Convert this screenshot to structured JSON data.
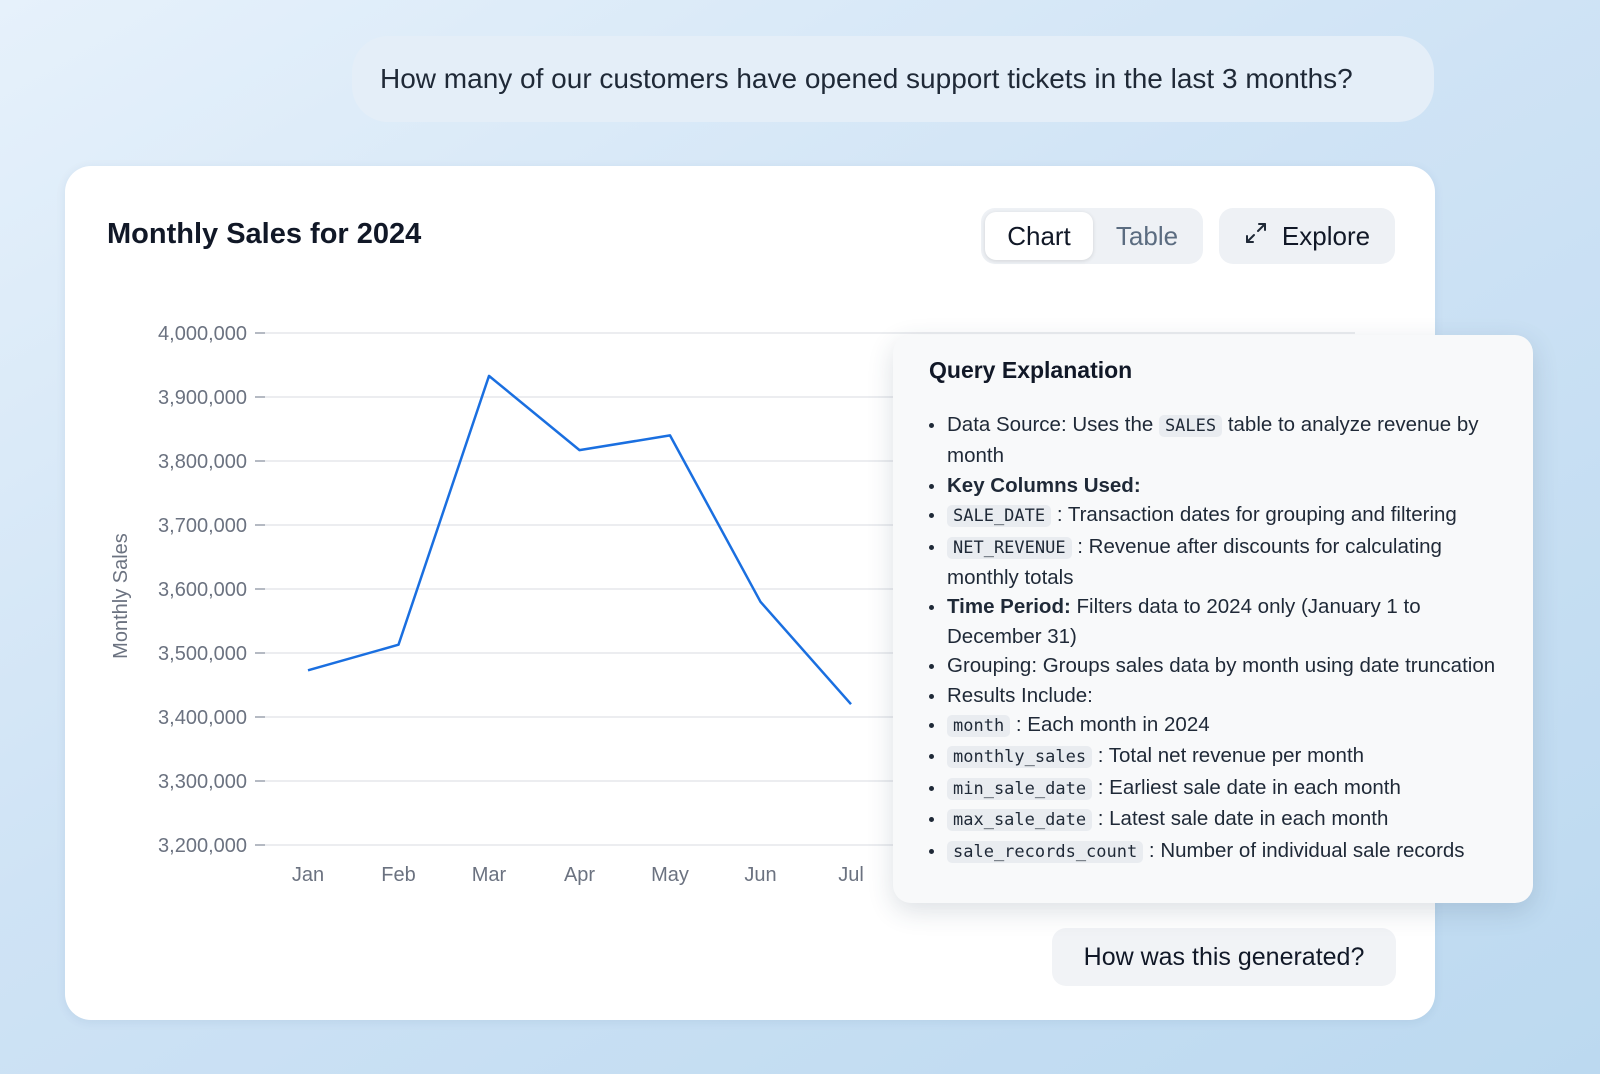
{
  "question": "How many of our customers have opened support tickets in the last 3 months?",
  "card": {
    "title": "Monthly Sales for 2024",
    "tabs": {
      "chart": "Chart",
      "table": "Table"
    },
    "explore_label": "Explore",
    "generated_label": "How was this generated?"
  },
  "chart_data": {
    "type": "line",
    "title": "Monthly Sales for 2024",
    "xlabel": "",
    "ylabel": "Monthly Sales",
    "ylim": [
      3200000,
      4000000
    ],
    "yticks": [
      4000000,
      3900000,
      3800000,
      3700000,
      3600000,
      3500000,
      3400000,
      3300000,
      3200000
    ],
    "ytick_labels": [
      "4,000,000",
      "3,900,000",
      "3,800,000",
      "3,700,000",
      "3,600,000",
      "3,500,000",
      "3,400,000",
      "3,300,000",
      "3,200,000"
    ],
    "categories": [
      "Jan",
      "Feb",
      "Mar",
      "Apr",
      "May",
      "Jun",
      "Jul"
    ],
    "values": [
      3473000,
      3513000,
      3933000,
      3817000,
      3840000,
      3580000,
      3420000
    ],
    "grid": "horizontal",
    "line_color": "#1a6fe0"
  },
  "explanation": {
    "title": "Query Explanation",
    "items": [
      {
        "pre": "Data Source: Uses the ",
        "code": "SALES",
        "post": " table to analyze revenue by month"
      },
      {
        "label": "Key Columns Used:"
      },
      {
        "code": "SALE_DATE",
        "post": " : Transaction dates for grouping and filtering"
      },
      {
        "code": "NET_REVENUE",
        "post": " : Revenue after discounts for calculating monthly totals"
      },
      {
        "label": "Time Period:",
        "post": " Filters data to 2024 only (January 1 to December 31)"
      },
      {
        "pre": "Grouping: Groups sales data by month using date truncation"
      },
      {
        "pre": "Results Include:"
      },
      {
        "code": "month",
        "post": " : Each month in 2024"
      },
      {
        "code": "monthly_sales",
        "post": " : Total net revenue per month"
      },
      {
        "code": "min_sale_date",
        "post": " : Earliest sale date in each month"
      },
      {
        "code": "max_sale_date",
        "post": " : Latest sale date in each month"
      },
      {
        "code": "sale_records_count",
        "post": " : Number of individual sale records"
      }
    ]
  }
}
